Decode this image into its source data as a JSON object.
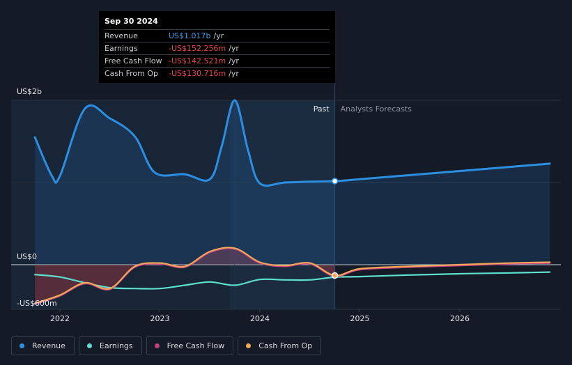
{
  "tooltip": {
    "date": "Sep 30 2024",
    "rows": [
      {
        "label": "Revenue",
        "value": "US$1.017b",
        "unit": "/yr",
        "color": "#3b9ee8"
      },
      {
        "label": "Earnings",
        "value": "-US$152.256m",
        "unit": "/yr",
        "color": "#e8474c"
      },
      {
        "label": "Free Cash Flow",
        "value": "-US$142.521m",
        "unit": "/yr",
        "color": "#e8474c"
      },
      {
        "label": "Cash From Op",
        "value": "-US$130.716m",
        "unit": "/yr",
        "color": "#e8474c"
      }
    ]
  },
  "labels": {
    "past": "Past",
    "forecast": "Analysts Forecasts"
  },
  "legend": [
    {
      "label": "Revenue",
      "color": "#2c8fe2"
    },
    {
      "label": "Earnings",
      "color": "#5ee0cf"
    },
    {
      "label": "Free Cash Flow",
      "color": "#c2407f"
    },
    {
      "label": "Cash From Op",
      "color": "#f2a65a"
    }
  ],
  "chart_data": {
    "type": "line",
    "y_ticks": [
      {
        "label": "US$2b",
        "value": 2000
      },
      {
        "label": "US$0",
        "value": 0
      },
      {
        "label": "-US$600m",
        "value": -600
      }
    ],
    "x_ticks": [
      {
        "label": "2022",
        "value": 2022.0
      },
      {
        "label": "2023",
        "value": 2023.0
      },
      {
        "label": "2024",
        "value": 2024.0
      },
      {
        "label": "2025",
        "value": 2025.0
      },
      {
        "label": "2026",
        "value": 2026.0
      }
    ],
    "xlim": [
      2021.53,
      2026.9
    ],
    "ylim": [
      -600,
      2050
    ],
    "past_end": 2024.75,
    "series": [
      {
        "name": "Revenue",
        "color": "#2c8fe2",
        "fill": true,
        "points": [
          [
            2021.75,
            1550
          ],
          [
            2021.92,
            1080
          ],
          [
            2022.0,
            1080
          ],
          [
            2022.25,
            1900
          ],
          [
            2022.5,
            1780
          ],
          [
            2022.75,
            1560
          ],
          [
            2022.95,
            1120
          ],
          [
            2023.25,
            1100
          ],
          [
            2023.5,
            1040
          ],
          [
            2023.62,
            1450
          ],
          [
            2023.75,
            2000
          ],
          [
            2023.88,
            1400
          ],
          [
            2024.0,
            990
          ],
          [
            2024.25,
            1000
          ],
          [
            2024.5,
            1010
          ],
          [
            2024.75,
            1017
          ],
          [
            2025.0,
            1040
          ],
          [
            2025.5,
            1090
          ],
          [
            2026.0,
            1140
          ],
          [
            2026.5,
            1190
          ],
          [
            2026.9,
            1230
          ]
        ]
      },
      {
        "name": "Earnings",
        "color": "#5ee0cf",
        "points": [
          [
            2021.75,
            -120
          ],
          [
            2022.0,
            -150
          ],
          [
            2022.25,
            -220
          ],
          [
            2022.5,
            -280
          ],
          [
            2022.75,
            -290
          ],
          [
            2023.0,
            -290
          ],
          [
            2023.25,
            -250
          ],
          [
            2023.5,
            -210
          ],
          [
            2023.75,
            -250
          ],
          [
            2024.0,
            -180
          ],
          [
            2024.25,
            -185
          ],
          [
            2024.5,
            -185
          ],
          [
            2024.75,
            -152
          ],
          [
            2025.0,
            -145
          ],
          [
            2025.5,
            -125
          ],
          [
            2026.0,
            -110
          ],
          [
            2026.5,
            -100
          ],
          [
            2026.9,
            -90
          ]
        ]
      },
      {
        "name": "Free Cash Flow",
        "color": "#c2407f",
        "points": [
          [
            2021.75,
            -480
          ],
          [
            2022.0,
            -380
          ],
          [
            2022.25,
            -230
          ],
          [
            2022.5,
            -300
          ],
          [
            2022.75,
            -30
          ],
          [
            2023.0,
            10
          ],
          [
            2023.25,
            -30
          ],
          [
            2023.5,
            150
          ],
          [
            2023.75,
            190
          ],
          [
            2024.0,
            20
          ],
          [
            2024.25,
            -20
          ],
          [
            2024.5,
            10
          ],
          [
            2024.75,
            -142
          ],
          [
            2025.0,
            -60
          ],
          [
            2025.5,
            -30
          ],
          [
            2026.0,
            -10
          ],
          [
            2026.5,
            10
          ],
          [
            2026.9,
            20
          ]
        ]
      },
      {
        "name": "Cash From Op",
        "color": "#f2a65a",
        "points": [
          [
            2021.75,
            -470
          ],
          [
            2022.0,
            -370
          ],
          [
            2022.25,
            -220
          ],
          [
            2022.5,
            -290
          ],
          [
            2022.75,
            -20
          ],
          [
            2023.0,
            20
          ],
          [
            2023.25,
            -20
          ],
          [
            2023.5,
            160
          ],
          [
            2023.75,
            200
          ],
          [
            2024.0,
            30
          ],
          [
            2024.25,
            -10
          ],
          [
            2024.5,
            20
          ],
          [
            2024.75,
            -131
          ],
          [
            2025.0,
            -50
          ],
          [
            2025.5,
            -20
          ],
          [
            2026.0,
            0
          ],
          [
            2026.5,
            20
          ],
          [
            2026.9,
            30
          ]
        ]
      }
    ]
  }
}
